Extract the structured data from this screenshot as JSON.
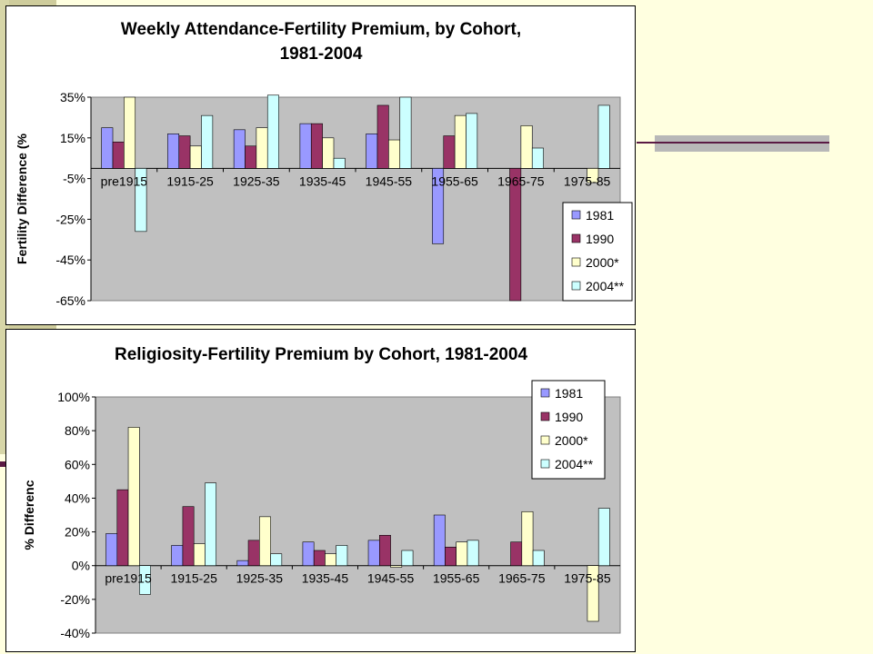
{
  "colors": {
    "series": [
      "#9999FF",
      "#993366",
      "#FFFFCC",
      "#CCFFFF"
    ],
    "plot_bg": "#C0C0C0",
    "slide_bg": "#FFFFE0"
  },
  "chart_data": [
    {
      "type": "bar",
      "title_line1": "Weekly Attendance-Fertility Premium, by Cohort,",
      "title_line2": "1981-2004",
      "ylabel": "Fertility Difference (%",
      "xlabel": "",
      "ylim": [
        -65,
        35
      ],
      "yticks": [
        35,
        15,
        -5,
        -25,
        -45,
        -65
      ],
      "ytick_labels": [
        "35%",
        "15%",
        "-5%",
        "-25%",
        "-45%",
        "-65%"
      ],
      "categories": [
        "pre1915",
        "1915-25",
        "1925-35",
        "1935-45",
        "1945-55",
        "1955-65",
        "1965-75",
        "1975-85"
      ],
      "series": [
        {
          "name": "1981",
          "values": [
            20,
            17,
            19,
            22,
            17,
            -37,
            null,
            null
          ]
        },
        {
          "name": "1990",
          "values": [
            13,
            16,
            11,
            22,
            31,
            16,
            -65,
            null
          ]
        },
        {
          "name": "2000*",
          "values": [
            35,
            11,
            20,
            15,
            14,
            26,
            21,
            -7
          ]
        },
        {
          "name": "2004**",
          "values": [
            -31,
            26,
            36,
            5,
            35,
            27,
            10,
            31
          ]
        }
      ],
      "legend": "bottom-right",
      "grid": false
    },
    {
      "type": "bar",
      "title_line1": "Religiosity-Fertility Premium by Cohort, 1981-2004",
      "title_line2": "",
      "ylabel": "% Differenc",
      "xlabel": "",
      "ylim": [
        -40,
        100
      ],
      "yticks": [
        100,
        80,
        60,
        40,
        20,
        0,
        -20,
        -40
      ],
      "ytick_labels": [
        "100%",
        "80%",
        "60%",
        "40%",
        "20%",
        "0%",
        "-20%",
        "-40%"
      ],
      "categories": [
        "pre1915",
        "1915-25",
        "1925-35",
        "1935-45",
        "1945-55",
        "1955-65",
        "1965-75",
        "1975-85"
      ],
      "series": [
        {
          "name": "1981",
          "values": [
            19,
            12,
            3,
            14,
            15,
            30,
            null,
            null
          ]
        },
        {
          "name": "1990",
          "values": [
            45,
            35,
            15,
            9,
            18,
            11,
            14,
            null
          ]
        },
        {
          "name": "2000*",
          "values": [
            82,
            13,
            29,
            7,
            -1,
            14,
            32,
            -33
          ]
        },
        {
          "name": "2004**",
          "values": [
            -17,
            49,
            7,
            12,
            9,
            15,
            9,
            34
          ]
        }
      ],
      "legend": "top-right",
      "grid": false
    }
  ]
}
